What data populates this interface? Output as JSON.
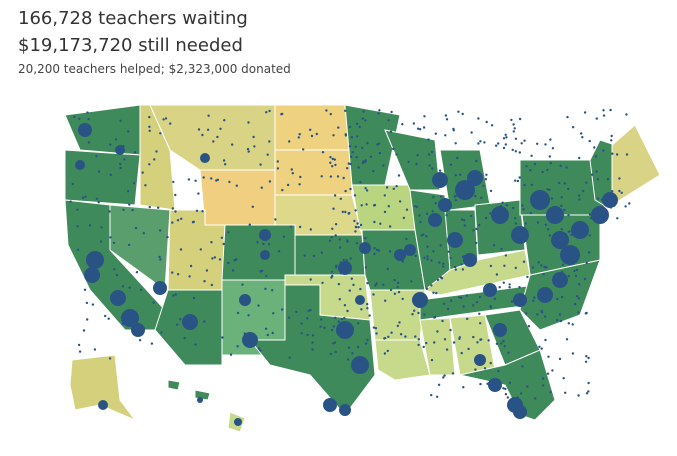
{
  "header": {
    "line1": "166,728 teachers waiting",
    "line2": "$19,173,720 still needed",
    "line3": "20,200 teachers helped; $2,323,000 donated"
  }
}
